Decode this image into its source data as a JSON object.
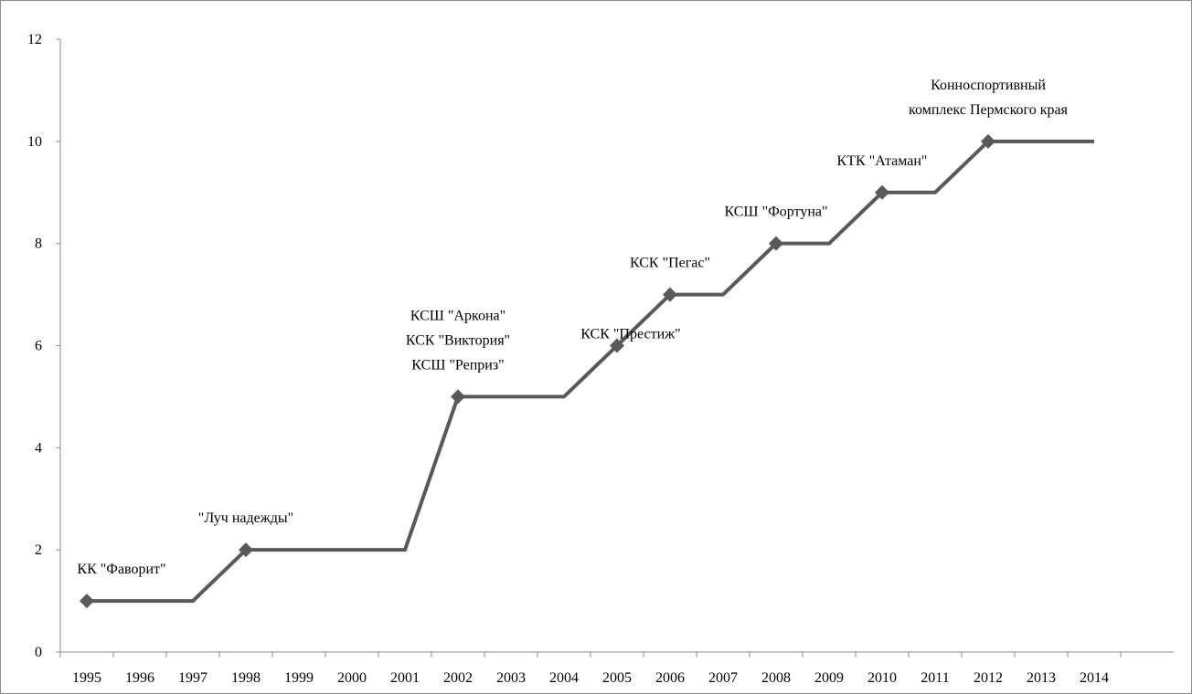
{
  "chart_data": {
    "type": "line",
    "categories": [
      "1995",
      "1996",
      "1997",
      "1998",
      "1999",
      "2000",
      "2001",
      "2002",
      "2003",
      "2004",
      "2005",
      "2006",
      "2007",
      "2008",
      "2009",
      "2010",
      "2011",
      "2012",
      "2013",
      "2014"
    ],
    "series": [
      {
        "color": "#595959",
        "values": [
          1,
          1,
          1,
          2,
          2,
          2,
          2,
          5,
          5,
          5,
          6,
          7,
          7,
          8,
          8,
          9,
          9,
          10,
          10,
          10
        ]
      }
    ],
    "point_labels": [
      [
        "КК \"Фаворит\""
      ],
      null,
      null,
      [
        "\"Луч надежды\""
      ],
      null,
      null,
      null,
      [
        "КСШ \"Аркона\"",
        "КСК \"Виктория\"",
        "КСШ \"Реприз\""
      ],
      null,
      null,
      [
        "КСК \"Престиж\""
      ],
      [
        "КСК \"Пегас\""
      ],
      null,
      [
        "КСШ \"Фортуна\""
      ],
      null,
      [
        "КТК \"Атаман\""
      ],
      null,
      [
        "Конноспортивный",
        "комплекс Пермского края"
      ],
      null,
      null
    ],
    "ylim": [
      0,
      12
    ],
    "yticks": [
      0,
      2,
      4,
      6,
      8,
      10,
      12
    ]
  }
}
